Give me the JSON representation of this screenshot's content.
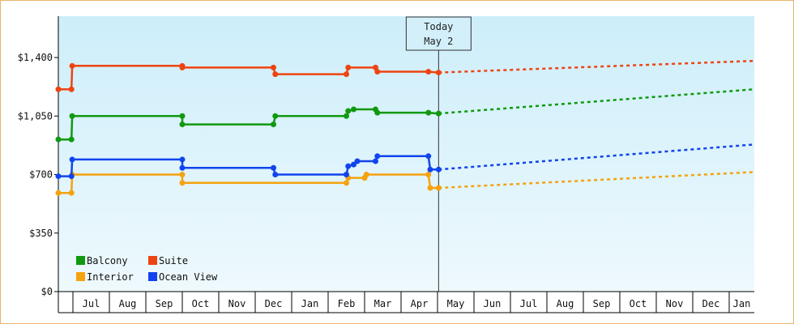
{
  "chart_data": {
    "type": "line",
    "title": "",
    "xlabel": "",
    "ylabel": "",
    "ylim": [
      0,
      1400
    ],
    "y_ticks": [
      {
        "value": 0,
        "label": "$0"
      },
      {
        "value": 350,
        "label": "$350"
      },
      {
        "value": 700,
        "label": "$700"
      },
      {
        "value": 1050,
        "label": "$1,050"
      },
      {
        "value": 1400,
        "label": "$1,400"
      }
    ],
    "x_ticks": [
      "Jul",
      "Aug",
      "Sep",
      "Oct",
      "Nov",
      "Dec",
      "Jan",
      "Feb",
      "Mar",
      "Apr",
      "May",
      "Jun",
      "Jul",
      "Aug",
      "Sep",
      "Oct",
      "Nov",
      "Dec",
      "Jan"
    ],
    "x_tick_start_month": 1,
    "today": {
      "line1": "Today",
      "line2": "May 2",
      "month": 11.03
    },
    "legend_position": "bottom-left",
    "background_gradient": [
      "#cdeefa",
      "#eef9fd"
    ],
    "series": [
      {
        "name": "Balcony",
        "color": "#119911",
        "points": [
          [
            0,
            910
          ],
          [
            0.9,
            910
          ],
          [
            0.95,
            1050
          ],
          [
            4.0,
            1050
          ],
          [
            4.0,
            1000
          ],
          [
            6.5,
            1000
          ],
          [
            6.55,
            1050
          ],
          [
            8.5,
            1050
          ],
          [
            8.55,
            1080
          ],
          [
            8.7,
            1090
          ],
          [
            9.3,
            1090
          ],
          [
            9.35,
            1070
          ],
          [
            10.75,
            1070
          ],
          [
            11.03,
            1065
          ]
        ],
        "forecast_end": [
          21.5,
          1210
        ]
      },
      {
        "name": "Suite",
        "color": "#ee4411",
        "points": [
          [
            0,
            1210
          ],
          [
            0.9,
            1210
          ],
          [
            0.95,
            1350
          ],
          [
            4.0,
            1350
          ],
          [
            4.0,
            1340
          ],
          [
            6.5,
            1340
          ],
          [
            6.55,
            1300
          ],
          [
            8.5,
            1300
          ],
          [
            8.55,
            1340
          ],
          [
            9.3,
            1340
          ],
          [
            9.35,
            1315
          ],
          [
            10.75,
            1315
          ],
          [
            11.03,
            1310
          ]
        ],
        "forecast_end": [
          21.5,
          1380
        ]
      },
      {
        "name": "Interior",
        "color": "#f5a20f",
        "points": [
          [
            0,
            590
          ],
          [
            0.9,
            590
          ],
          [
            0.95,
            700
          ],
          [
            4.0,
            700
          ],
          [
            4.0,
            650
          ],
          [
            8.5,
            650
          ],
          [
            8.55,
            680
          ],
          [
            9.0,
            680
          ],
          [
            9.05,
            700
          ],
          [
            10.75,
            700
          ],
          [
            10.8,
            620
          ],
          [
            11.03,
            620
          ]
        ],
        "forecast_end": [
          21.5,
          715
        ]
      },
      {
        "name": "Ocean View",
        "color": "#1144ee",
        "points": [
          [
            0,
            690
          ],
          [
            0.9,
            690
          ],
          [
            0.95,
            790
          ],
          [
            4.0,
            790
          ],
          [
            4.0,
            740
          ],
          [
            6.5,
            740
          ],
          [
            6.55,
            700
          ],
          [
            8.5,
            700
          ],
          [
            8.55,
            750
          ],
          [
            8.7,
            760
          ],
          [
            8.8,
            780
          ],
          [
            9.3,
            780
          ],
          [
            9.35,
            810
          ],
          [
            10.75,
            810
          ],
          [
            10.8,
            730
          ],
          [
            11.03,
            730
          ]
        ],
        "forecast_end": [
          21.5,
          880
        ]
      }
    ]
  }
}
